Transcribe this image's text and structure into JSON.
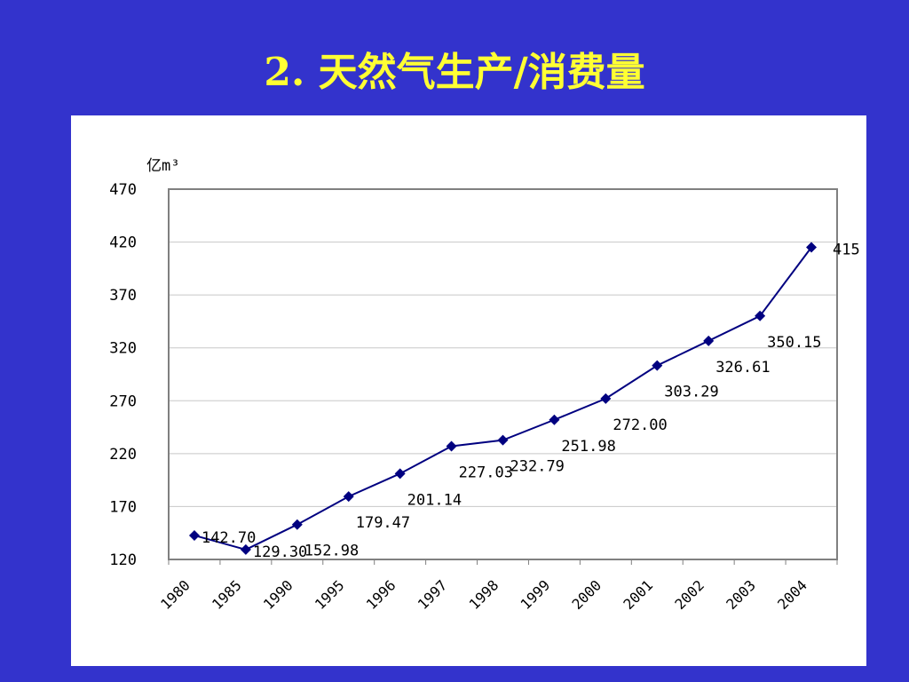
{
  "slide": {
    "title": "2. 天然气生产/消费量"
  },
  "chart_data": {
    "type": "line",
    "title": "",
    "ylabel": "亿m³",
    "xlabel": "",
    "categories": [
      "1980",
      "1985",
      "1990",
      "1995",
      "1996",
      "1997",
      "1998",
      "1999",
      "2000",
      "2001",
      "2002",
      "2003",
      "2004"
    ],
    "series": [
      {
        "values": [
          142.7,
          129.3,
          152.98,
          179.47,
          201.14,
          227.03,
          232.79,
          251.98,
          272.0,
          303.29,
          326.61,
          350.15,
          415
        ],
        "labels": [
          "142.70",
          "129.30",
          "152.98",
          "179.47",
          "201.14",
          "227.03",
          "232.79",
          "251.98",
          "272.00",
          "303.29",
          "326.61",
          "350.15",
          "415"
        ]
      }
    ],
    "ylim": [
      120,
      470
    ],
    "yticks": [
      120,
      170,
      220,
      270,
      320,
      370,
      420,
      470
    ],
    "grid": true,
    "color": "#000080"
  }
}
